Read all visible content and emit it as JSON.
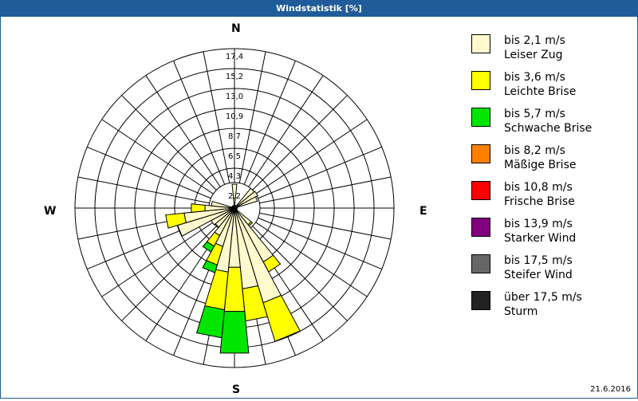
{
  "window": {
    "title": "Windstatistik [%]",
    "date": "21.6.2016",
    "title_bar_color": "#1f5c99"
  },
  "compass": {
    "N": "N",
    "E": "E",
    "S": "S",
    "W": "W"
  },
  "legend": [
    {
      "label": "bis 2,1 m/s",
      "sub": "Leiser Zug",
      "color": "#fffacd"
    },
    {
      "label": "bis 3,6 m/s",
      "sub": "Leichte Brise",
      "color": "#ffff00"
    },
    {
      "label": "bis 5,7 m/s",
      "sub": "Schwache Brise",
      "color": "#00e600"
    },
    {
      "label": "bis 8,2 m/s",
      "sub": "Mäßige Brise",
      "color": "#ff8000"
    },
    {
      "label": "bis 10,8 m/s",
      "sub": "Frische Brise",
      "color": "#ff0000"
    },
    {
      "label": "bis 13,9 m/s",
      "sub": "Starker Wind",
      "color": "#800080"
    },
    {
      "label": "bis 17,5 m/s",
      "sub": "Steifer Wind",
      "color": "#666666"
    },
    {
      "label": "über 17,5 m/s",
      "sub": "Sturm",
      "color": "#222222"
    }
  ],
  "chart_data": {
    "type": "wind-rose",
    "title": "Windstatistik [%]",
    "ring_labels": [
      "2,2",
      "4,3",
      "6,5",
      "8,7",
      "10,9",
      "13,0",
      "15,2",
      "17,4"
    ],
    "rmax": 17.4,
    "sectors": 32,
    "series_names": [
      "bis 2,1 m/s",
      "bis 3,6 m/s",
      "bis 5,7 m/s",
      "bis 8,2 m/s",
      "bis 10,8 m/s",
      "bis 13,9 m/s",
      "bis 17,5 m/s",
      "über 17,5 m/s"
    ],
    "bars": [
      {
        "dir": 45.0,
        "cum": [
          0.8
        ]
      },
      {
        "dir": 56.25,
        "cum": [
          0.9
        ]
      },
      {
        "dir": 67.5,
        "cum": [
          0.6
        ]
      },
      {
        "dir": 135.0,
        "cum": [
          0.3,
          0.5
        ]
      },
      {
        "dir": 146.25,
        "cum": [
          5.2,
          6.6
        ]
      },
      {
        "dir": 157.5,
        "cum": [
          9.9,
          14.9
        ]
      },
      {
        "dir": 168.75,
        "cum": [
          7.7,
          11.7
        ]
      },
      {
        "dir": 180.0,
        "cum": [
          5.0,
          10.5,
          15.7
        ]
      },
      {
        "dir": 191.25,
        "cum": [
          5.6,
          10.3,
          13.8
        ]
      },
      {
        "dir": 202.5,
        "cum": [
          2.6,
          5.0,
          6.0
        ]
      },
      {
        "dir": 213.75,
        "cum": [
          1.5,
          3.0,
          3.8
        ]
      },
      {
        "dir": 225.0,
        "cum": [
          0.7
        ]
      },
      {
        "dir": 236.25,
        "cum": [
          0.9
        ]
      },
      {
        "dir": 247.5,
        "cum": [
          5.0
        ]
      },
      {
        "dir": 258.75,
        "cum": [
          3.9,
          6.2
        ]
      },
      {
        "dir": 270.0,
        "cum": [
          1.3,
          3.0
        ]
      },
      {
        "dir": 281.25,
        "cum": [
          0.5
        ]
      },
      {
        "dir": 360.0,
        "cum": [
          0.6
        ]
      }
    ]
  }
}
